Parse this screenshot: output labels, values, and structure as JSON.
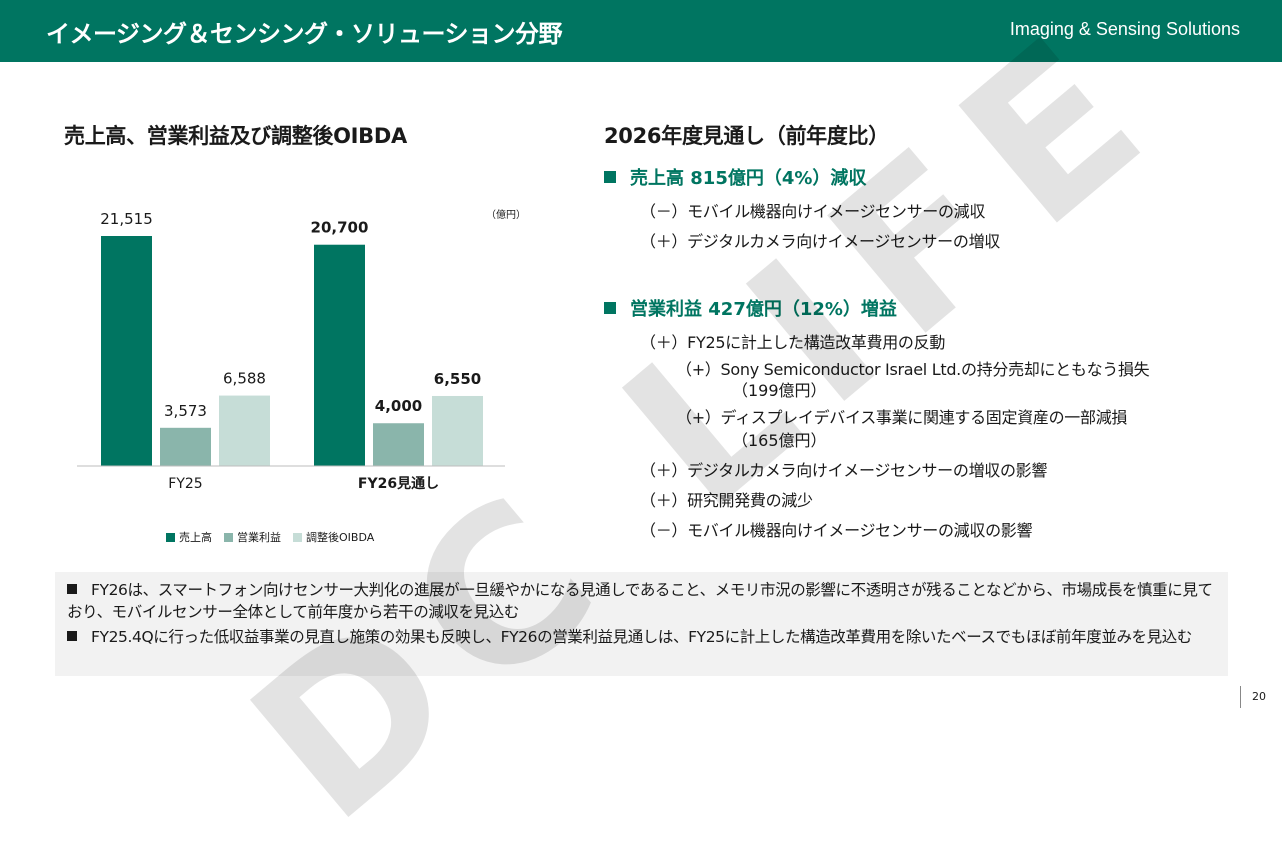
{
  "header": {
    "title": "イメージング＆センシング・ソリューション分野",
    "subtitle": "Imaging & Sensing Solutions"
  },
  "left": {
    "title": "売上高、営業利益及び調整後OIBDA",
    "unit": "（億円）"
  },
  "chart_data": {
    "type": "bar",
    "categories": [
      "FY25",
      "FY26見通し"
    ],
    "series": [
      {
        "name": "売上高",
        "values": [
          21515,
          20700
        ],
        "labels": [
          "21,515",
          "20,700"
        ],
        "color": "#007561"
      },
      {
        "name": "営業利益",
        "values": [
          3573,
          4000
        ],
        "labels": [
          "3,573",
          "4,000"
        ],
        "color": "#8ab5ab"
      },
      {
        "name": "調整後OIBDA",
        "values": [
          6588,
          6550
        ],
        "labels": [
          "6,588",
          "6,550"
        ],
        "color": "#c6ddd7"
      }
    ],
    "bold_category_index": 1,
    "legend": "bottom"
  },
  "outlook": {
    "title": "2026年度見通し（前年度比）",
    "sales": {
      "head": "売上高  815億円（4%）減収",
      "items": [
        "（－）モバイル機器向けイメージセンサーの減収",
        "（＋）デジタルカメラ向けイメージセンサーの増収"
      ]
    },
    "op": {
      "head": "営業利益  427億円（12%）増益",
      "item1": "（＋）FY25に計上した構造改革費用の反動",
      "sub1": "（+）Sony Semiconductor Israel Ltd.の持分売却にともなう損失",
      "sub1_cont": "（199億円）",
      "sub2": "（+）ディスプレイデバイス事業に関連する固定資産の一部減損",
      "sub2_cont": "（165億円）",
      "item2": "（＋）デジタルカメラ向けイメージセンサーの増収の影響",
      "item3": "（＋）研究開発費の減少",
      "item4": "（－）モバイル機器向けイメージセンサーの減収の影響"
    }
  },
  "notes": [
    "FY26は、スマートフォン向けセンサー大判化の進展が一旦緩やかになる見通しであること、メモリ市況の影響に不透明さが残ることなどから、市場成長を慎重に見ており、モバイルセンサー全体として前年度から若干の減収を見込む",
    "FY25.4Qに行った低収益事業の見直し施策の効果も反映し、FY26の営業利益見通しは、FY25に計上した構造改革費用を除いたベースでもほぼ前年度並みを見込む"
  ],
  "page_number": "20",
  "watermark": "DC LIFE"
}
